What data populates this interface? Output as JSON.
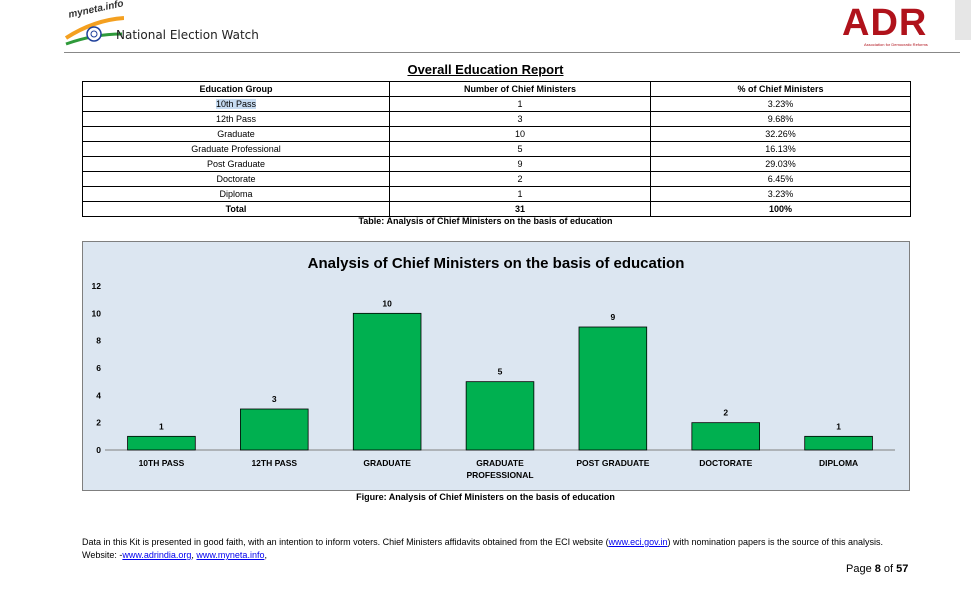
{
  "header": {
    "logo_left_small": "myneta.info",
    "logo_left_main": "National Election Watch",
    "logo_right_main": "ADR",
    "logo_right_sub": "Association for Democratic Reforms"
  },
  "report": {
    "title": "Overall Education Report",
    "columns": [
      "Education Group",
      "Number of Chief Ministers",
      "% of Chief Ministers"
    ],
    "rows": [
      [
        "10th Pass",
        "1",
        "3.23%"
      ],
      [
        "12th Pass",
        "3",
        "9.68%"
      ],
      [
        "Graduate",
        "10",
        "32.26%"
      ],
      [
        "Graduate Professional",
        "5",
        "16.13%"
      ],
      [
        "Post Graduate",
        "9",
        "29.03%"
      ],
      [
        "Doctorate",
        "2",
        "6.45%"
      ],
      [
        "Diploma",
        "1",
        "3.23%"
      ]
    ],
    "total": [
      "Total",
      "31",
      "100%"
    ],
    "table_caption": "Table: Analysis of Chief Ministers on the basis of education"
  },
  "chart_data": {
    "type": "bar",
    "title": "Analysis of Chief Ministers on the basis of education",
    "categories": [
      "10TH PASS",
      "12TH PASS",
      "GRADUATE",
      "GRADUATE PROFESSIONAL",
      "POST GRADUATE",
      "DOCTORATE",
      "DIPLOMA"
    ],
    "values": [
      1,
      3,
      10,
      5,
      9,
      2,
      1
    ],
    "ylim": [
      0,
      12
    ],
    "yticks": [
      0,
      2,
      4,
      6,
      8,
      10,
      12
    ],
    "grid": false,
    "legend": "none",
    "bar_color": "#00b050",
    "background": "#dce6f1"
  },
  "figure_caption": "Figure: Analysis of Chief Ministers on the basis of education",
  "footer": {
    "note_part1": "Data in this Kit is presented in good faith, with an intention to inform voters. Chief Ministers affidavits obtained from the ECI website (",
    "link_eci": "www.eci.gov.in",
    "note_part2": ") with nomination papers is the source of this analysis. Website: -",
    "link_adr": "www.adrindia.org",
    "sep": ", ",
    "link_myneta": "www.myneta.info",
    "note_end": ",",
    "page_prefix": "Page ",
    "page_current": "8",
    "page_of": " of ",
    "page_total": "57"
  }
}
